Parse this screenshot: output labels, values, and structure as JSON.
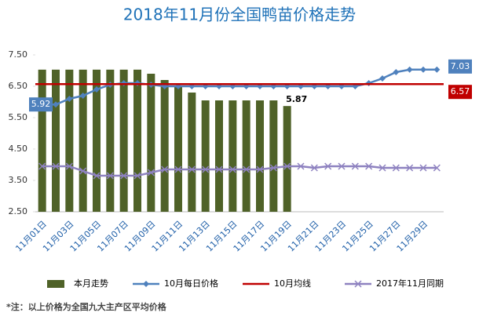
{
  "chart_data": {
    "type": "bar",
    "title": "2018年11月份全国鸭苗价格走势",
    "categories": [
      "11月01日",
      null,
      "11月03日",
      null,
      "11月05日",
      null,
      "11月07日",
      null,
      "11月09日",
      null,
      "11月11日",
      null,
      "11月13日",
      null,
      "11月15日",
      null,
      "11月17日",
      null,
      "11月19日",
      null,
      "11月21日",
      null,
      "11月23日",
      null,
      "11月25日",
      null,
      "11月27日",
      null,
      "11月29日",
      null
    ],
    "series": [
      {
        "name": "本月走势",
        "type": "bar",
        "color": "#4f6228",
        "values": [
          7.03,
          7.03,
          7.03,
          7.03,
          7.03,
          7.03,
          7.03,
          7.03,
          6.9,
          6.7,
          6.5,
          6.3,
          6.05,
          6.05,
          6.05,
          6.05,
          6.05,
          6.05,
          5.87,
          null,
          null,
          null,
          null,
          null,
          null,
          null,
          null,
          null,
          null,
          null
        ]
      },
      {
        "name": "10月每日价格",
        "type": "line",
        "marker": "diamond",
        "color": "#4f81bd",
        "values": [
          5.92,
          5.92,
          6.1,
          6.2,
          6.4,
          6.55,
          6.6,
          6.6,
          6.55,
          6.5,
          6.5,
          6.5,
          6.5,
          6.5,
          6.5,
          6.5,
          6.5,
          6.5,
          6.5,
          6.5,
          6.5,
          6.5,
          6.5,
          6.5,
          6.6,
          6.75,
          6.95,
          7.03,
          7.03,
          7.03
        ]
      },
      {
        "name": "10月均线",
        "type": "line",
        "marker": "none",
        "color": "#c00000",
        "values": [
          6.57,
          6.57,
          6.57,
          6.57,
          6.57,
          6.57,
          6.57,
          6.57,
          6.57,
          6.57,
          6.57,
          6.57,
          6.57,
          6.57,
          6.57,
          6.57,
          6.57,
          6.57,
          6.57,
          6.57,
          6.57,
          6.57,
          6.57,
          6.57,
          6.57,
          6.57,
          6.57,
          6.57,
          6.57,
          6.57
        ]
      },
      {
        "name": "2017年11月同期",
        "type": "line",
        "marker": "x",
        "color": "#8e82c0",
        "values": [
          3.95,
          3.95,
          3.95,
          3.8,
          3.65,
          3.65,
          3.65,
          3.65,
          3.75,
          3.85,
          3.85,
          3.85,
          3.85,
          3.85,
          3.85,
          3.85,
          3.85,
          3.9,
          3.95,
          3.95,
          3.9,
          3.95,
          3.95,
          3.95,
          3.95,
          3.9,
          3.9,
          3.9,
          3.9,
          3.9
        ]
      }
    ],
    "ylim": [
      2.5,
      7.5
    ],
    "yticks": [
      {
        "value": 2.5,
        "label": "2.50"
      },
      {
        "value": 3.5,
        "label": "3.50"
      },
      {
        "value": 4.5,
        "label": "4.50"
      },
      {
        "value": 5.5,
        "label": "5.50"
      },
      {
        "value": 6.5,
        "label": "6.50"
      },
      {
        "value": 7.5,
        "label": "7.50"
      }
    ],
    "grid": false,
    "legend": "bottom",
    "note": "*注：以上价格为全国九大主产区平均价格"
  }
}
